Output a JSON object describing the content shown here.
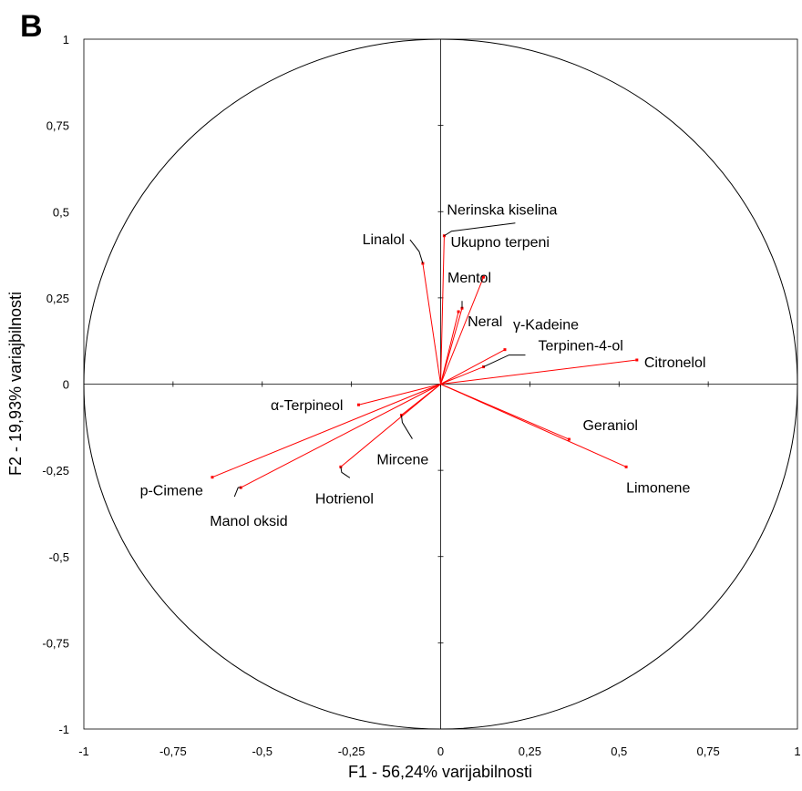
{
  "chart_data": {
    "type": "scatter",
    "subtype": "pca-correlation-circle",
    "panel_label": "B",
    "xlabel": "F1 - 56,24% varijabilnosti",
    "ylabel": "F2  - 19,93% variajbilnosti",
    "xlim": [
      -1,
      1
    ],
    "ylim": [
      -1,
      1
    ],
    "xticks": [
      "-1",
      "-0,75",
      "-0,5",
      "-0,25",
      "0",
      "0,25",
      "0,5",
      "0,75",
      "1"
    ],
    "yticks": [
      "-1",
      "-0,75",
      "-0,5",
      "-0,25",
      "0",
      "0,25",
      "0,5",
      "0,75",
      "1"
    ],
    "grid": false,
    "unit_circle": true,
    "vector_color": "#ff0000",
    "variables": [
      {
        "name": "Nerinska kiselina",
        "x": 0.01,
        "y": 0.43
      },
      {
        "name": "Linalol",
        "x": -0.05,
        "y": 0.35
      },
      {
        "name": "Ukupno terpeni",
        "x": 0.12,
        "y": 0.31
      },
      {
        "name": "Mentol",
        "x": 0.06,
        "y": 0.22
      },
      {
        "name": "Neral",
        "x": 0.05,
        "y": 0.21
      },
      {
        "name": "γ-Kadeine",
        "x": 0.18,
        "y": 0.1
      },
      {
        "name": "Terpinen-4-ol",
        "x": 0.12,
        "y": 0.05
      },
      {
        "name": "Citronelol",
        "x": 0.55,
        "y": 0.07
      },
      {
        "name": "α-Terpineol",
        "x": -0.23,
        "y": -0.06
      },
      {
        "name": "Mircene",
        "x": -0.11,
        "y": -0.09
      },
      {
        "name": "Geraniol",
        "x": 0.36,
        "y": -0.16
      },
      {
        "name": "Limonene",
        "x": 0.52,
        "y": -0.24
      },
      {
        "name": "Hotrienol",
        "x": -0.28,
        "y": -0.24
      },
      {
        "name": "p-Cimene",
        "x": -0.64,
        "y": -0.27
      },
      {
        "name": "Manol oksid",
        "x": -0.56,
        "y": -0.3
      }
    ]
  }
}
